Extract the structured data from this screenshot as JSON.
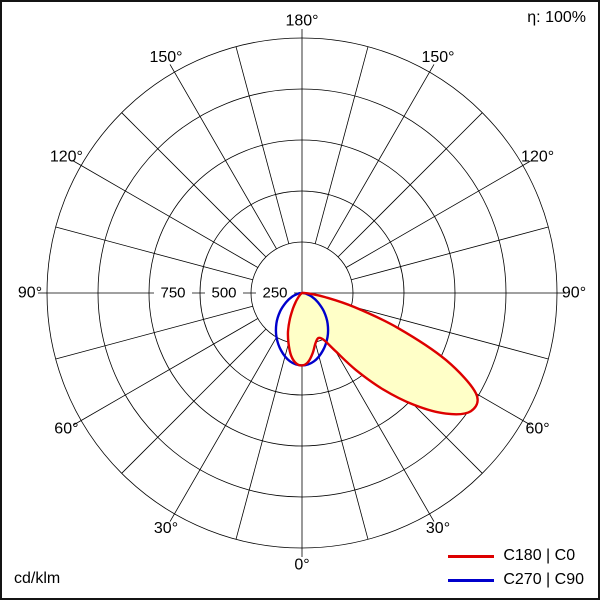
{
  "header": {
    "efficiency": "η: 100%"
  },
  "footer": {
    "unit": "cd/klm"
  },
  "legend": {
    "items": [
      {
        "label": "C180 | C0",
        "color": "#dd0000"
      },
      {
        "label": "C270 | C90",
        "color": "#0000cc"
      }
    ]
  },
  "chart_data": {
    "type": "line",
    "projection": "polar",
    "description": "Luminous intensity distribution polar diagram",
    "unit": "cd/klm",
    "efficiency_percent": 100,
    "radial_axis": {
      "max": 1250,
      "ring_step": 250,
      "shown_labels": [
        "750",
        "500",
        "250"
      ]
    },
    "angular_axis": {
      "grid_step_deg": 15,
      "label_step_deg": 30,
      "tick_labels": [
        "0°",
        "30°",
        "60°",
        "90°",
        "120°",
        "150°",
        "180°"
      ],
      "labels_both_sides": true
    },
    "colors": {
      "grid": "#000000",
      "fill": "#ffffc8",
      "background": "#ffffff"
    },
    "series": [
      {
        "name": "C0",
        "side": "right",
        "color": "#dd0000",
        "gamma_deg": [
          0,
          5,
          10,
          15,
          20,
          25,
          30,
          35,
          40,
          45,
          50,
          55,
          60,
          65,
          70,
          75,
          80,
          85,
          90
        ],
        "values_cd_per_klm": [
          355,
          340,
          300,
          255,
          235,
          255,
          330,
          460,
          615,
          775,
          920,
          1010,
          985,
          780,
          500,
          265,
          115,
          40,
          10
        ]
      },
      {
        "name": "C180",
        "side": "left",
        "color": "#dd0000",
        "gamma_deg": [
          0,
          5,
          10,
          15,
          20,
          25,
          30,
          35,
          40,
          45,
          50,
          55,
          60,
          65,
          70,
          75,
          80,
          85,
          90
        ],
        "values_cd_per_klm": [
          355,
          345,
          310,
          255,
          200,
          140,
          90,
          55,
          30,
          16,
          9,
          5,
          3,
          2,
          2,
          1,
          1,
          1,
          0
        ]
      },
      {
        "name": "C90",
        "side": "right",
        "color": "#0000cc",
        "gamma_deg": [
          0,
          10,
          20,
          30,
          40,
          50,
          60,
          70,
          80,
          90
        ],
        "values_cd_per_klm": [
          355,
          340,
          300,
          250,
          195,
          140,
          90,
          50,
          20,
          5
        ]
      },
      {
        "name": "C270",
        "side": "left",
        "color": "#0000cc",
        "gamma_deg": [
          0,
          10,
          20,
          30,
          40,
          50,
          60,
          70,
          80,
          90
        ],
        "values_cd_per_klm": [
          355,
          340,
          300,
          250,
          195,
          140,
          90,
          50,
          20,
          5
        ]
      }
    ]
  }
}
